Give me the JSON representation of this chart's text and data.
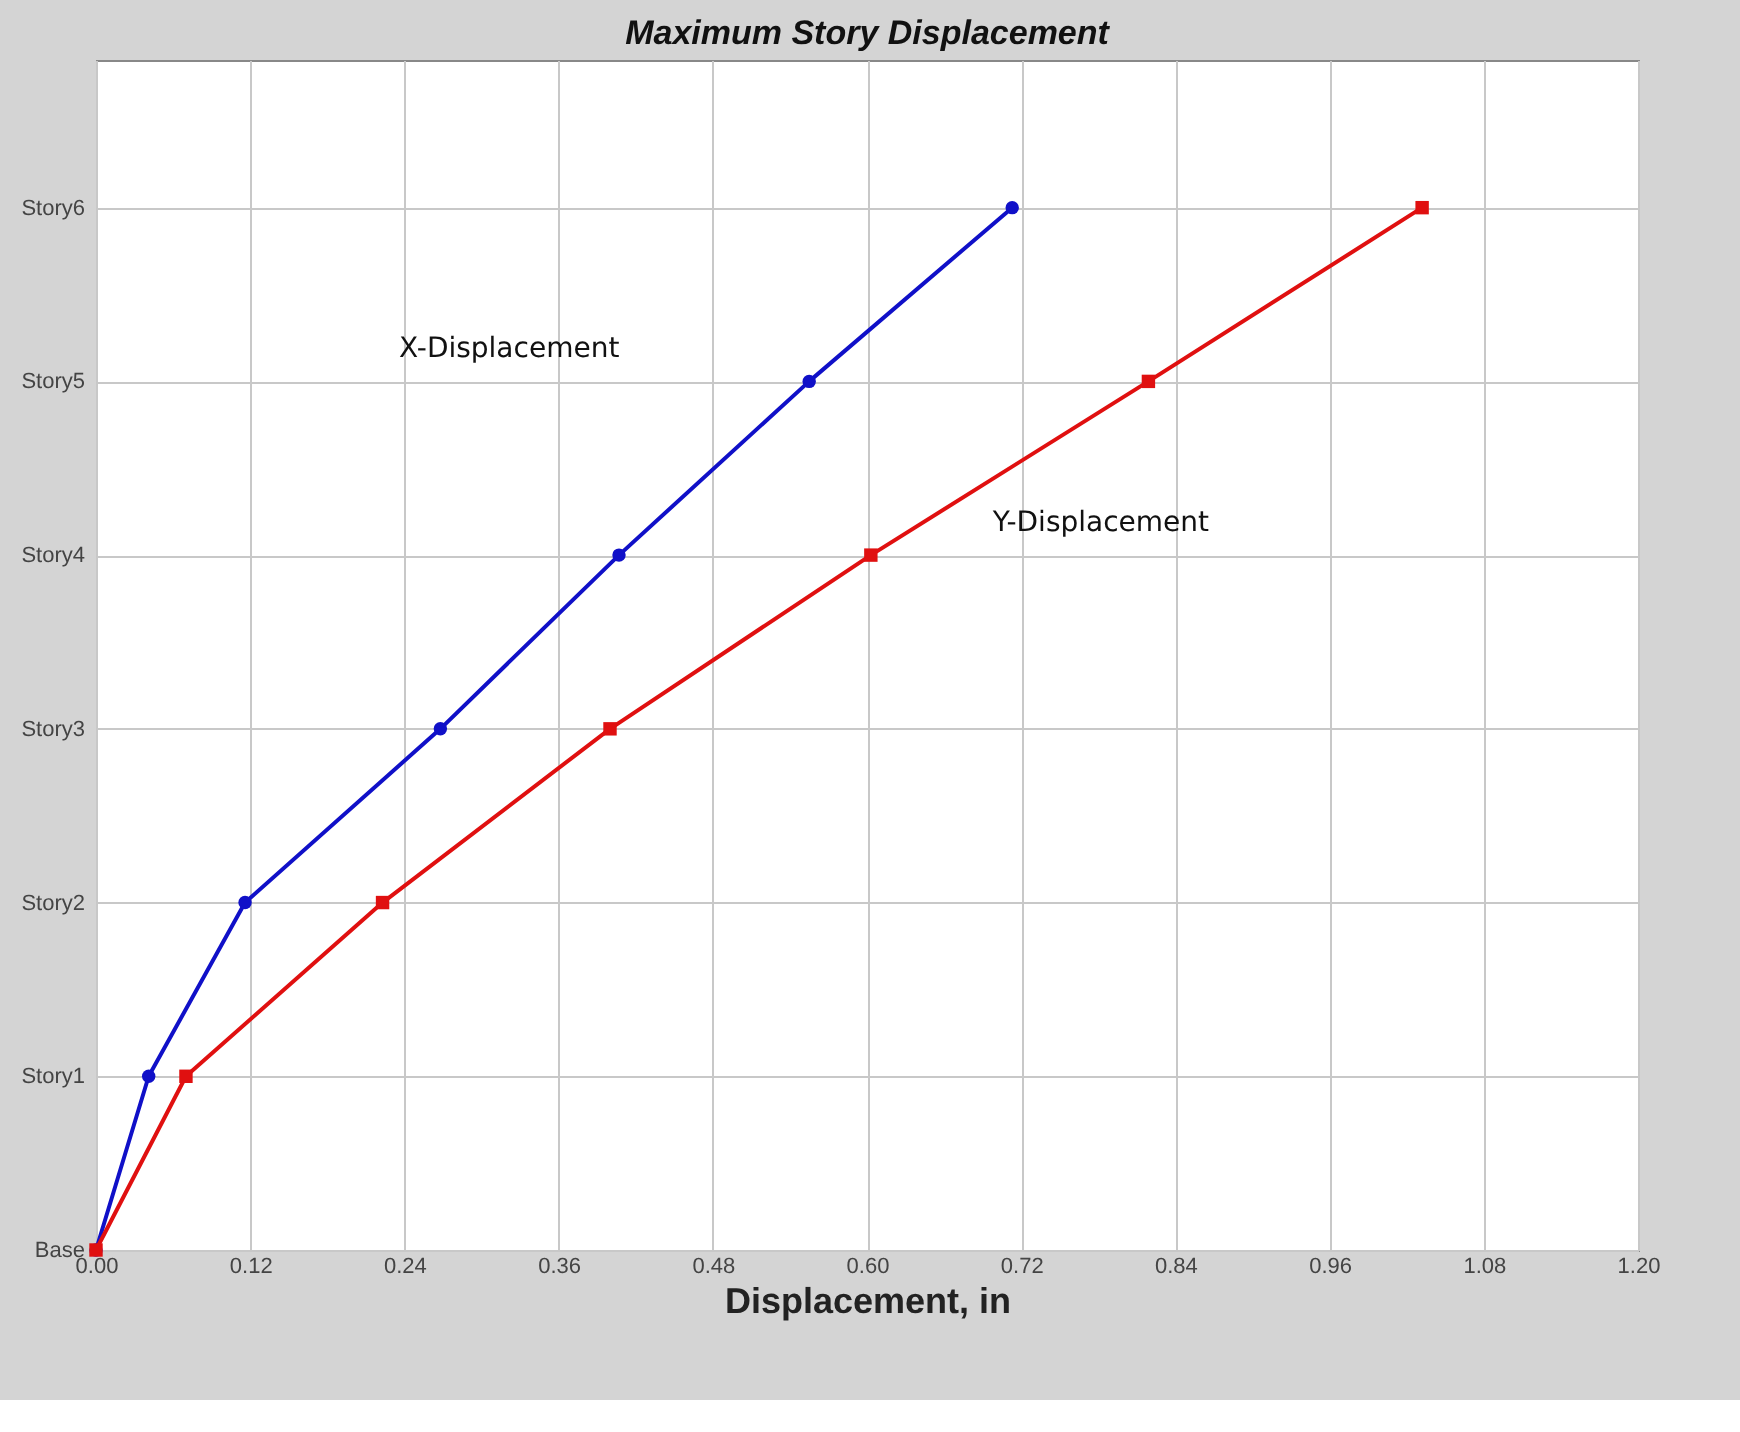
{
  "chart_data": {
    "type": "line",
    "orientation": "horizontal",
    "title": "Maximum Story Displacement",
    "xlabel": "Displacement, in",
    "categories": [
      "Story6",
      "Story5",
      "Story4",
      "Story3",
      "Story2",
      "Story1",
      "Base"
    ],
    "series": [
      {
        "name": "X-Displacement",
        "color": "#1010c8",
        "marker": "circle",
        "values": [
          0.713,
          0.555,
          0.407,
          0.268,
          0.116,
          0.041,
          0
        ]
      },
      {
        "name": "Y-Displacement",
        "color": "#e01010",
        "marker": "square",
        "values": [
          1.032,
          0.819,
          0.603,
          0.4,
          0.223,
          0.07,
          0
        ]
      }
    ],
    "xlim": [
      0,
      1.2
    ],
    "xticks": [
      {
        "value": 0,
        "label": "0.00"
      },
      {
        "value": 0.12,
        "label": "0.12"
      },
      {
        "value": 0.24,
        "label": "0.24"
      },
      {
        "value": 0.36,
        "label": "0.36"
      },
      {
        "value": 0.48,
        "label": "0.48"
      },
      {
        "value": 0.6,
        "label": "0.60"
      },
      {
        "value": 0.72,
        "label": "0.72"
      },
      {
        "value": 0.84,
        "label": "0.84"
      },
      {
        "value": 0.96,
        "label": "0.96"
      },
      {
        "value": 1.08,
        "label": "1.08"
      },
      {
        "value": 1.2,
        "label": "1.20"
      }
    ],
    "grid": true,
    "legend": false,
    "line_style": "solid"
  }
}
